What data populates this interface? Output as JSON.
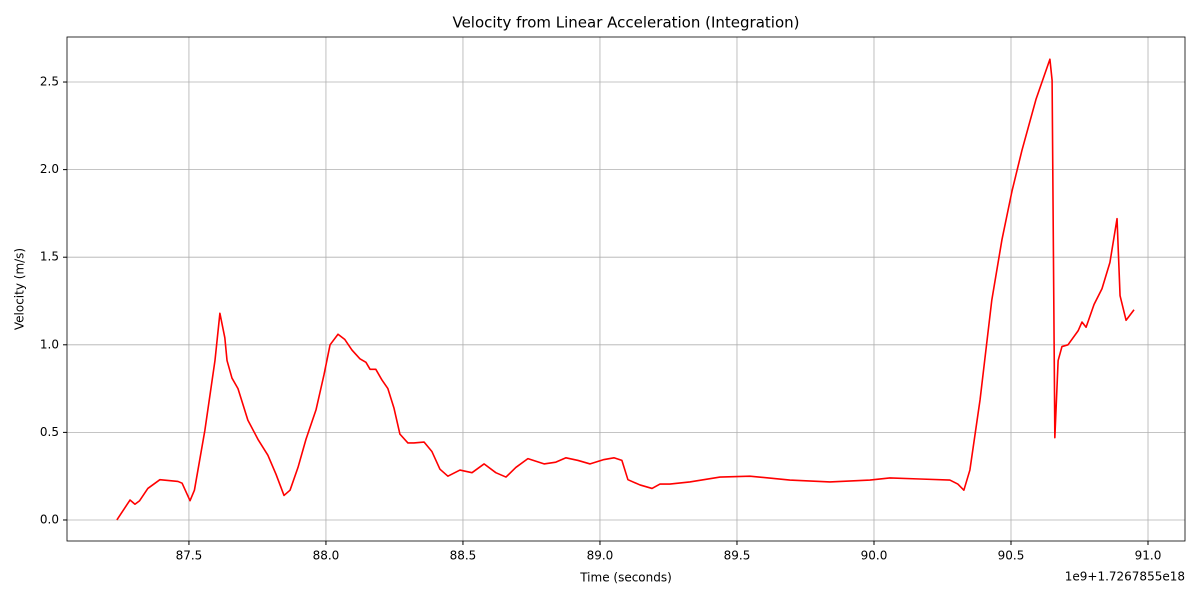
{
  "chart_data": {
    "type": "line",
    "title": "Velocity from Linear Acceleration (Integration)",
    "x_label": "Time (seconds)",
    "y_label": "Velocity (m/s)",
    "x_offset_label": "1e9+1.7267855e18",
    "grid": true,
    "xlim": [
      87.055,
      91.135
    ],
    "ylim": [
      -0.12,
      2.757
    ],
    "xticks": [
      87.5,
      {
        "value": 88,
        "label": "88.0"
      },
      88.5,
      {
        "value": 89,
        "label": "89.0"
      },
      89.5,
      {
        "value": 90,
        "label": "90.0"
      },
      90.5,
      {
        "value": 91,
        "label": "91.0"
      }
    ],
    "yticks": [
      {
        "value": 0,
        "label": "0.0"
      },
      0.5,
      {
        "value": 1,
        "label": "1.0"
      },
      1.5,
      {
        "value": 2,
        "label": "2.0"
      },
      2.5
    ],
    "x": [
      87.237,
      87.285,
      87.303,
      87.32,
      87.35,
      87.394,
      87.46,
      87.475,
      87.504,
      87.52,
      87.558,
      87.595,
      87.613,
      87.631,
      87.639,
      87.657,
      87.679,
      87.715,
      87.752,
      87.788,
      87.818,
      87.847,
      87.869,
      87.898,
      87.927,
      87.964,
      87.993,
      88.015,
      88.044,
      88.069,
      88.095,
      88.124,
      88.146,
      88.161,
      88.182,
      88.204,
      88.226,
      88.248,
      88.27,
      88.299,
      88.321,
      88.358,
      88.387,
      88.416,
      88.445,
      88.489,
      88.533,
      88.577,
      88.62,
      88.657,
      88.693,
      88.737,
      88.796,
      88.839,
      88.876,
      88.92,
      88.964,
      89.015,
      89.051,
      89.08,
      89.102,
      89.146,
      89.19,
      89.219,
      89.255,
      89.328,
      89.438,
      89.547,
      89.693,
      89.839,
      89.985,
      90.058,
      90.168,
      90.277,
      90.306,
      90.328,
      90.35,
      90.387,
      90.43,
      90.467,
      90.504,
      90.54,
      90.591,
      90.642,
      90.65,
      90.66,
      90.672,
      90.686,
      90.708,
      90.745,
      90.759,
      90.774,
      90.803,
      90.832,
      90.861,
      90.887,
      90.898,
      90.92,
      90.949
    ],
    "series": [
      {
        "name": "Velocity",
        "color": "#ff0000",
        "values": [
          0,
          0.114,
          0.09,
          0.11,
          0.18,
          0.23,
          0.22,
          0.21,
          0.11,
          0.17,
          0.51,
          0.91,
          1.18,
          1.04,
          0.91,
          0.81,
          0.75,
          0.57,
          0.46,
          0.37,
          0.26,
          0.14,
          0.17,
          0.3,
          0.46,
          0.63,
          0.83,
          1.0,
          1.06,
          1.03,
          0.97,
          0.92,
          0.9,
          0.86,
          0.86,
          0.8,
          0.75,
          0.64,
          0.49,
          0.44,
          0.44,
          0.445,
          0.39,
          0.29,
          0.25,
          0.285,
          0.27,
          0.32,
          0.27,
          0.245,
          0.3,
          0.35,
          0.32,
          0.33,
          0.355,
          0.34,
          0.32,
          0.345,
          0.355,
          0.34,
          0.23,
          0.2,
          0.18,
          0.205,
          0.205,
          0.217,
          0.245,
          0.25,
          0.228,
          0.217,
          0.228,
          0.24,
          0.234,
          0.228,
          0.205,
          0.17,
          0.285,
          0.685,
          1.256,
          1.6,
          1.88,
          2.11,
          2.4,
          2.63,
          2.51,
          0.47,
          0.91,
          0.99,
          1.0,
          1.08,
          1.13,
          1.1,
          1.23,
          1.32,
          1.47,
          1.72,
          1.28,
          1.14,
          1.2
        ]
      }
    ]
  }
}
